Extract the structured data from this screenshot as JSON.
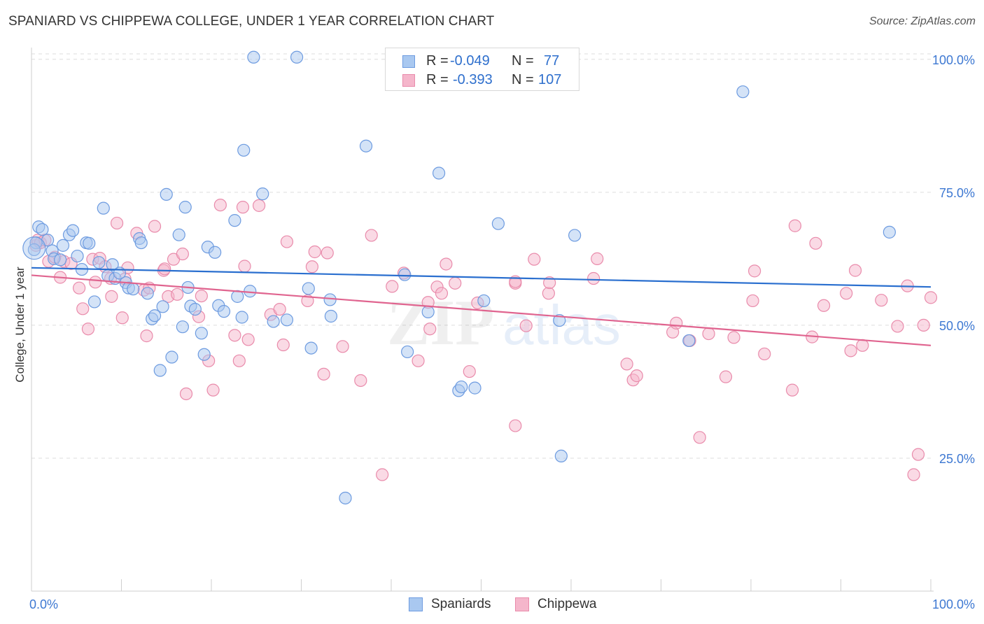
{
  "title": "SPANIARD VS CHIPPEWA COLLEGE, UNDER 1 YEAR CORRELATION CHART",
  "source": "Source: ZipAtlas.com",
  "watermark": {
    "zip": "ZIP",
    "atlas": "atlas"
  },
  "colors": {
    "blue_fill": "#a9c8f0",
    "blue_stroke": "#6d9be0",
    "blue_line": "#2a6fcf",
    "pink_fill": "#f5b6cb",
    "pink_stroke": "#e98bab",
    "pink_line": "#e0648f",
    "axis_text": "#3d78d2",
    "grid": "#dddddd"
  },
  "legend": {
    "rows": [
      {
        "r_label": "R =",
        "r_value": "-0.049",
        "n_label": "N =",
        "n_value": "77"
      },
      {
        "r_label": "R =",
        "r_value": "-0.393",
        "n_label": "N =",
        "n_value": "107"
      }
    ]
  },
  "bottom_legend": {
    "series1": "Spaniards",
    "series2": "Chippewa"
  },
  "chart_data": {
    "type": "scatter",
    "title": "SPANIARD VS CHIPPEWA COLLEGE, UNDER 1 YEAR CORRELATION CHART",
    "xlabel": "",
    "ylabel": "College, Under 1 year",
    "xlim": [
      0,
      100
    ],
    "ylim": [
      0,
      103
    ],
    "x_tick_labels": [
      "0.0%",
      "100.0%"
    ],
    "y_tick_values": [
      25,
      50,
      75,
      100
    ],
    "y_tick_labels": [
      "25.0%",
      "50.0%",
      "75.0%",
      "100.0%"
    ],
    "grid": true,
    "legend_position": "top-center",
    "series": [
      {
        "name": "Spaniards",
        "r": -0.049,
        "n": 77,
        "trend": [
          [
            0,
            60.8
          ],
          [
            100,
            57.2
          ]
        ],
        "points": [
          [
            0.5,
            65.5
          ],
          [
            0.8,
            68.5
          ],
          [
            1.2,
            68
          ],
          [
            1.8,
            66
          ],
          [
            2.3,
            64
          ],
          [
            2.5,
            62.5
          ],
          [
            3.2,
            62.3
          ],
          [
            3.5,
            65
          ],
          [
            4.2,
            67
          ],
          [
            4.6,
            67.8
          ],
          [
            5.1,
            63
          ],
          [
            5.6,
            60.5
          ],
          [
            6.1,
            65.5
          ],
          [
            6.4,
            65.4
          ],
          [
            7,
            54.4
          ],
          [
            7.5,
            61.8
          ],
          [
            8,
            72
          ],
          [
            8.5,
            59.3
          ],
          [
            9,
            61.4
          ],
          [
            9.3,
            58.8
          ],
          [
            9.8,
            59.8
          ],
          [
            10.5,
            58
          ],
          [
            10.8,
            57
          ],
          [
            11.3,
            56.8
          ],
          [
            12,
            66.3
          ],
          [
            12.2,
            65.5
          ],
          [
            12.9,
            56
          ],
          [
            13.4,
            51.2
          ],
          [
            13.7,
            51.8
          ],
          [
            14.3,
            41.5
          ],
          [
            14.6,
            53.5
          ],
          [
            15,
            74.6
          ],
          [
            15.6,
            44
          ],
          [
            16.4,
            67
          ],
          [
            16.8,
            49.7
          ],
          [
            17.1,
            72.2
          ],
          [
            17.4,
            57.1
          ],
          [
            17.7,
            53.6
          ],
          [
            18.2,
            53
          ],
          [
            18.9,
            48.5
          ],
          [
            19.2,
            44.5
          ],
          [
            19.6,
            64.7
          ],
          [
            20.4,
            63.7
          ],
          [
            20.8,
            53.7
          ],
          [
            21.4,
            52.6
          ],
          [
            22.6,
            69.7
          ],
          [
            22.9,
            55.4
          ],
          [
            23.4,
            51.5
          ],
          [
            23.6,
            82.9
          ],
          [
            24.3,
            56.4
          ],
          [
            24.7,
            100.4
          ],
          [
            25.7,
            74.7
          ],
          [
            26.9,
            50.7
          ],
          [
            28.4,
            51
          ],
          [
            29.5,
            100.4
          ],
          [
            30.8,
            56.9
          ],
          [
            31.1,
            45.7
          ],
          [
            33.2,
            54.8
          ],
          [
            33.3,
            51.7
          ],
          [
            34.9,
            17.5
          ],
          [
            37.2,
            83.7
          ],
          [
            41.5,
            59.5
          ],
          [
            41.8,
            45
          ],
          [
            44.1,
            52.5
          ],
          [
            45.3,
            78.6
          ],
          [
            47.5,
            37.7
          ],
          [
            47.8,
            38.4
          ],
          [
            49.3,
            38.2
          ],
          [
            50.3,
            54.6
          ],
          [
            51.9,
            69.1
          ],
          [
            58.7,
            50.9
          ],
          [
            58.9,
            25.4
          ],
          [
            60.4,
            66.9
          ],
          [
            73.1,
            47.1
          ],
          [
            79.1,
            93.9
          ],
          [
            95.4,
            67.5
          ],
          [
            0.3,
            64.2
          ]
        ]
      },
      {
        "name": "Chippewa",
        "r": -0.393,
        "n": 107,
        "trend": [
          [
            0,
            59.4
          ],
          [
            100,
            46.2
          ]
        ],
        "points": [
          [
            0.5,
            65
          ],
          [
            0.7,
            66
          ],
          [
            1,
            65.5
          ],
          [
            1.5,
            66
          ],
          [
            1.9,
            62
          ],
          [
            2.6,
            62.8
          ],
          [
            3.2,
            59
          ],
          [
            3.6,
            62
          ],
          [
            4.4,
            61.6
          ],
          [
            5.3,
            57
          ],
          [
            5.7,
            53.1
          ],
          [
            6.3,
            49.3
          ],
          [
            6.8,
            62.4
          ],
          [
            7.1,
            58.1
          ],
          [
            7.6,
            62.6
          ],
          [
            8.2,
            61
          ],
          [
            8.8,
            58.8
          ],
          [
            8.9,
            55.4
          ],
          [
            9.5,
            69.2
          ],
          [
            10.1,
            51.4
          ],
          [
            10.4,
            58.7
          ],
          [
            10.7,
            60.8
          ],
          [
            11.7,
            67.3
          ],
          [
            12.5,
            56.6
          ],
          [
            12.8,
            48
          ],
          [
            13.1,
            57
          ],
          [
            13.7,
            68.6
          ],
          [
            14.7,
            60.3
          ],
          [
            14.8,
            60.6
          ],
          [
            15.2,
            55.4
          ],
          [
            15.8,
            62.4
          ],
          [
            16.2,
            55.8
          ],
          [
            16.8,
            63.4
          ],
          [
            17.2,
            37.1
          ],
          [
            18.6,
            51.6
          ],
          [
            18.9,
            55.5
          ],
          [
            19.7,
            43.3
          ],
          [
            20.2,
            37.8
          ],
          [
            21,
            72.6
          ],
          [
            22.6,
            48.1
          ],
          [
            23.1,
            43.3
          ],
          [
            23.5,
            72.2
          ],
          [
            23.7,
            61.1
          ],
          [
            24.1,
            47.3
          ],
          [
            25.3,
            72.5
          ],
          [
            26.6,
            52
          ],
          [
            27.6,
            53
          ],
          [
            28,
            46.3
          ],
          [
            28.4,
            65.7
          ],
          [
            30.7,
            54.6
          ],
          [
            31.2,
            61
          ],
          [
            31.5,
            63.8
          ],
          [
            32.5,
            40.8
          ],
          [
            32.9,
            63.6
          ],
          [
            34.6,
            46
          ],
          [
            36.6,
            39.6
          ],
          [
            37.8,
            66.9
          ],
          [
            39,
            21.9
          ],
          [
            40.1,
            57.3
          ],
          [
            41.4,
            59.8
          ],
          [
            43,
            43.3
          ],
          [
            44.1,
            54.3
          ],
          [
            44.3,
            49.3
          ],
          [
            45.1,
            57.2
          ],
          [
            45.6,
            56
          ],
          [
            46.1,
            61.5
          ],
          [
            47.1,
            57.9
          ],
          [
            48.7,
            41.3
          ],
          [
            49.6,
            54.2
          ],
          [
            53.8,
            57.9
          ],
          [
            53.8,
            58.2
          ],
          [
            53.8,
            31.1
          ],
          [
            55,
            49.9
          ],
          [
            55.9,
            62.4
          ],
          [
            57.5,
            56
          ],
          [
            57.6,
            58
          ],
          [
            62.5,
            58.8
          ],
          [
            62.9,
            62.5
          ],
          [
            66.2,
            42.7
          ],
          [
            66.9,
            39.7
          ],
          [
            67.3,
            40.5
          ],
          [
            71.3,
            48.7
          ],
          [
            71.7,
            50.4
          ],
          [
            74.3,
            28.9
          ],
          [
            75.3,
            48.4
          ],
          [
            77.2,
            40.3
          ],
          [
            78.1,
            47.7
          ],
          [
            80.2,
            54.6
          ],
          [
            80.4,
            60.2
          ],
          [
            81.5,
            44.6
          ],
          [
            84.6,
            37.8
          ],
          [
            84.9,
            68.7
          ],
          [
            86.8,
            47.8
          ],
          [
            87.2,
            65.4
          ],
          [
            90.6,
            56
          ],
          [
            91.1,
            45.2
          ],
          [
            91.6,
            60.3
          ],
          [
            92.4,
            46.2
          ],
          [
            94.5,
            54.7
          ],
          [
            96.3,
            49.8
          ],
          [
            97.4,
            57.4
          ],
          [
            98.1,
            21.9
          ],
          [
            98.6,
            25.7
          ],
          [
            99.2,
            50
          ],
          [
            100,
            55.2
          ],
          [
            88.1,
            53.7
          ],
          [
            73.2,
            47.1
          ]
        ]
      }
    ]
  }
}
